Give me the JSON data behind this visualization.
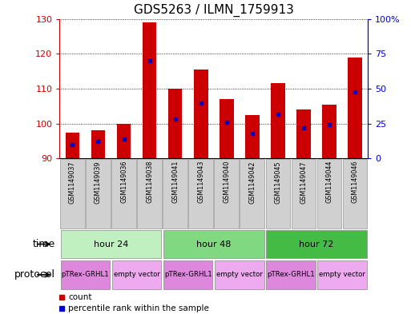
{
  "title": "GDS5263 / ILMN_1759913",
  "samples": [
    "GSM1149037",
    "GSM1149039",
    "GSM1149036",
    "GSM1149038",
    "GSM1149041",
    "GSM1149043",
    "GSM1149040",
    "GSM1149042",
    "GSM1149045",
    "GSM1149047",
    "GSM1149044",
    "GSM1149046"
  ],
  "counts": [
    97.5,
    98,
    100,
    129,
    110,
    115.5,
    107,
    102.5,
    111.5,
    104,
    105.5,
    119
  ],
  "percentile_ranks": [
    10,
    12,
    14,
    70,
    28,
    40,
    26,
    18,
    32,
    22,
    24,
    48
  ],
  "base_value": 90,
  "ylim_left": [
    90,
    130
  ],
  "ylim_right": [
    0,
    100
  ],
  "yticks_left": [
    90,
    100,
    110,
    120,
    130
  ],
  "yticks_right": [
    0,
    25,
    50,
    75,
    100
  ],
  "yticklabels_right": [
    "0",
    "25",
    "50",
    "75",
    "100%"
  ],
  "time_groups": [
    {
      "label": "hour 24",
      "start": 0,
      "end": 4,
      "color": "#c0f0c0"
    },
    {
      "label": "hour 48",
      "start": 4,
      "end": 8,
      "color": "#80d880"
    },
    {
      "label": "hour 72",
      "start": 8,
      "end": 12,
      "color": "#44bb44"
    }
  ],
  "protocol_groups": [
    {
      "label": "pTRex-GRHL1",
      "start": 0,
      "end": 2,
      "color": "#dd88dd"
    },
    {
      "label": "empty vector",
      "start": 2,
      "end": 4,
      "color": "#eeaaee"
    },
    {
      "label": "pTRex-GRHL1",
      "start": 4,
      "end": 6,
      "color": "#dd88dd"
    },
    {
      "label": "empty vector",
      "start": 6,
      "end": 8,
      "color": "#eeaaee"
    },
    {
      "label": "pTRex-GRHL1",
      "start": 8,
      "end": 10,
      "color": "#dd88dd"
    },
    {
      "label": "empty vector",
      "start": 10,
      "end": 12,
      "color": "#eeaaee"
    }
  ],
  "bar_color": "#cc0000",
  "dot_color": "#0000cc",
  "bar_width": 0.55,
  "time_label": "time",
  "protocol_label": "protocol",
  "legend_items": [
    {
      "label": "count",
      "color": "#cc0000"
    },
    {
      "label": "percentile rank within the sample",
      "color": "#0000cc"
    }
  ],
  "title_fontsize": 11,
  "tick_fontsize": 8,
  "label_fontsize": 9,
  "left_tick_color": "#cc0000",
  "right_tick_color": "#0000cc",
  "bg_color": "#ffffff",
  "sample_bg_color": "#d0d0d0"
}
